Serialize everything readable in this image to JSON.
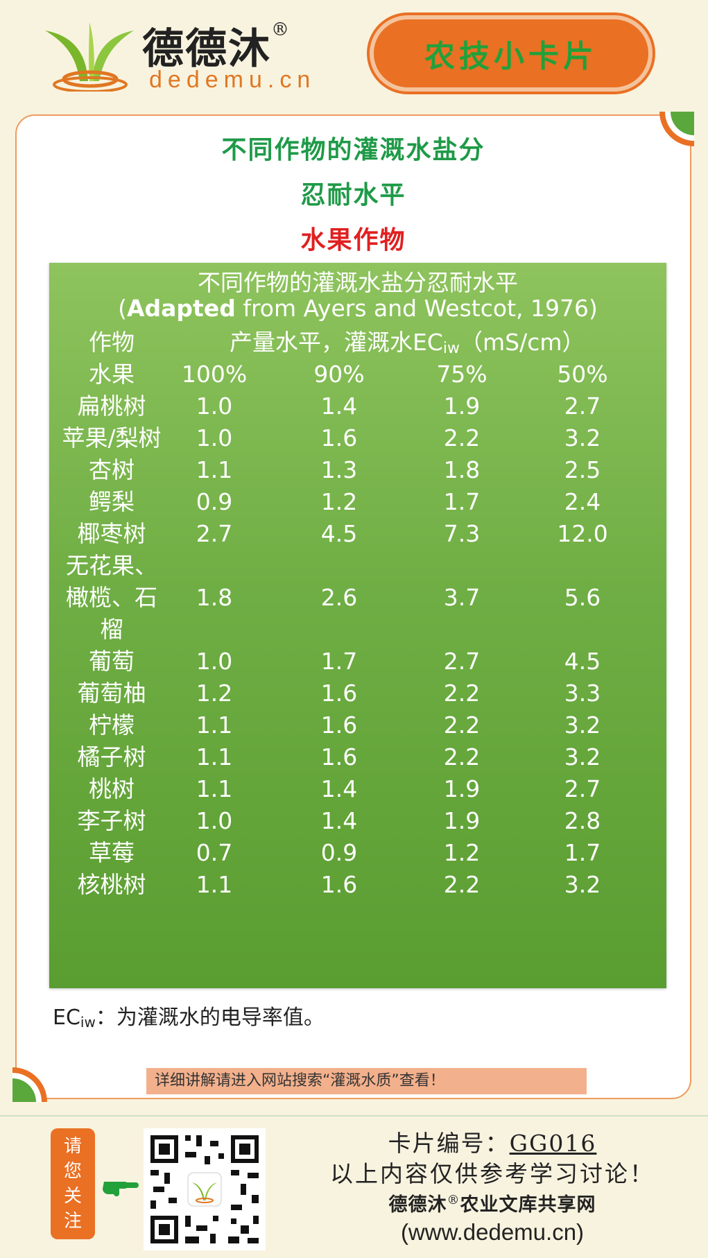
{
  "header": {
    "brand_name": "德德沐",
    "registered_mark": "®",
    "brand_domain": "dedemu.cn",
    "badge_label": "农技小卡片"
  },
  "card": {
    "title_line1": "不同作物的灌溉水盐分",
    "title_line2": "忍耐水平",
    "category": "水果作物"
  },
  "table": {
    "heading": "不同作物的灌溉水盐分忍耐水平",
    "source_open": "(",
    "source_bold": "Adapted",
    "source_rest": " from Ayers and Westcot, 1976)",
    "col_crop": "作物",
    "unit_prefix": "产量水平，灌溉水EC",
    "unit_sub": "iw",
    "unit_suffix": "（mS/cm）",
    "group_label": "水果",
    "yield_levels": [
      "100%",
      "90%",
      "75%",
      "50%"
    ],
    "rows": [
      {
        "crop": "扁桃树",
        "v": [
          "1.0",
          "1.4",
          "1.9",
          "2.7"
        ]
      },
      {
        "crop": "苹果/梨树",
        "v": [
          "1.0",
          "1.6",
          "2.2",
          "3.2"
        ]
      },
      {
        "crop": "杏树",
        "v": [
          "1.1",
          "1.3",
          "1.8",
          "2.5"
        ]
      },
      {
        "crop": "鳄梨",
        "v": [
          "0.9",
          "1.2",
          "1.7",
          "2.4"
        ]
      },
      {
        "crop": "椰枣树",
        "v": [
          "2.7",
          "4.5",
          "7.3",
          "12.0"
        ]
      },
      {
        "crop_lines": [
          "无花果、",
          "橄榄、石",
          "榴"
        ],
        "v": [
          "1.8",
          "2.6",
          "3.7",
          "5.6"
        ]
      },
      {
        "crop": "葡萄",
        "v": [
          "1.0",
          "1.7",
          "2.7",
          "4.5"
        ]
      },
      {
        "crop": "葡萄柚",
        "v": [
          "1.2",
          "1.6",
          "2.2",
          "3.3"
        ]
      },
      {
        "crop": "柠檬",
        "v": [
          "1.1",
          "1.6",
          "2.2",
          "3.2"
        ]
      },
      {
        "crop": "橘子树",
        "v": [
          "1.1",
          "1.6",
          "2.2",
          "3.2"
        ]
      },
      {
        "crop": "桃树",
        "v": [
          "1.1",
          "1.4",
          "1.9",
          "2.7"
        ]
      },
      {
        "crop": "李子树",
        "v": [
          "1.0",
          "1.4",
          "1.9",
          "2.8"
        ]
      },
      {
        "crop": "草莓",
        "v": [
          "0.7",
          "0.9",
          "1.2",
          "1.7"
        ]
      },
      {
        "crop": "核桃树",
        "v": [
          "1.1",
          "1.6",
          "2.2",
          "3.2"
        ]
      }
    ]
  },
  "note": {
    "prefix": "EC",
    "sub": "iw",
    "text": "：为灌溉水的电导率值。"
  },
  "tip": "详细讲解请进入网站搜索“灌溉水质”查看！",
  "footer": {
    "follow_chars": [
      "请",
      "您",
      "关",
      "注"
    ],
    "card_no_label": "卡片编号：",
    "card_no": "GG016",
    "disclaimer": "以上内容仅供参考学习讨论！",
    "site_name_a": "德德沐",
    "site_name_mark": "®",
    "site_name_b": "农业文库共享网",
    "site_url": "(www.dedemu.cn)"
  },
  "colors": {
    "accent_orange": "#ea7024",
    "title_green": "#1f9a48",
    "category_red": "#e02020",
    "panel_green": "#6fae44"
  }
}
